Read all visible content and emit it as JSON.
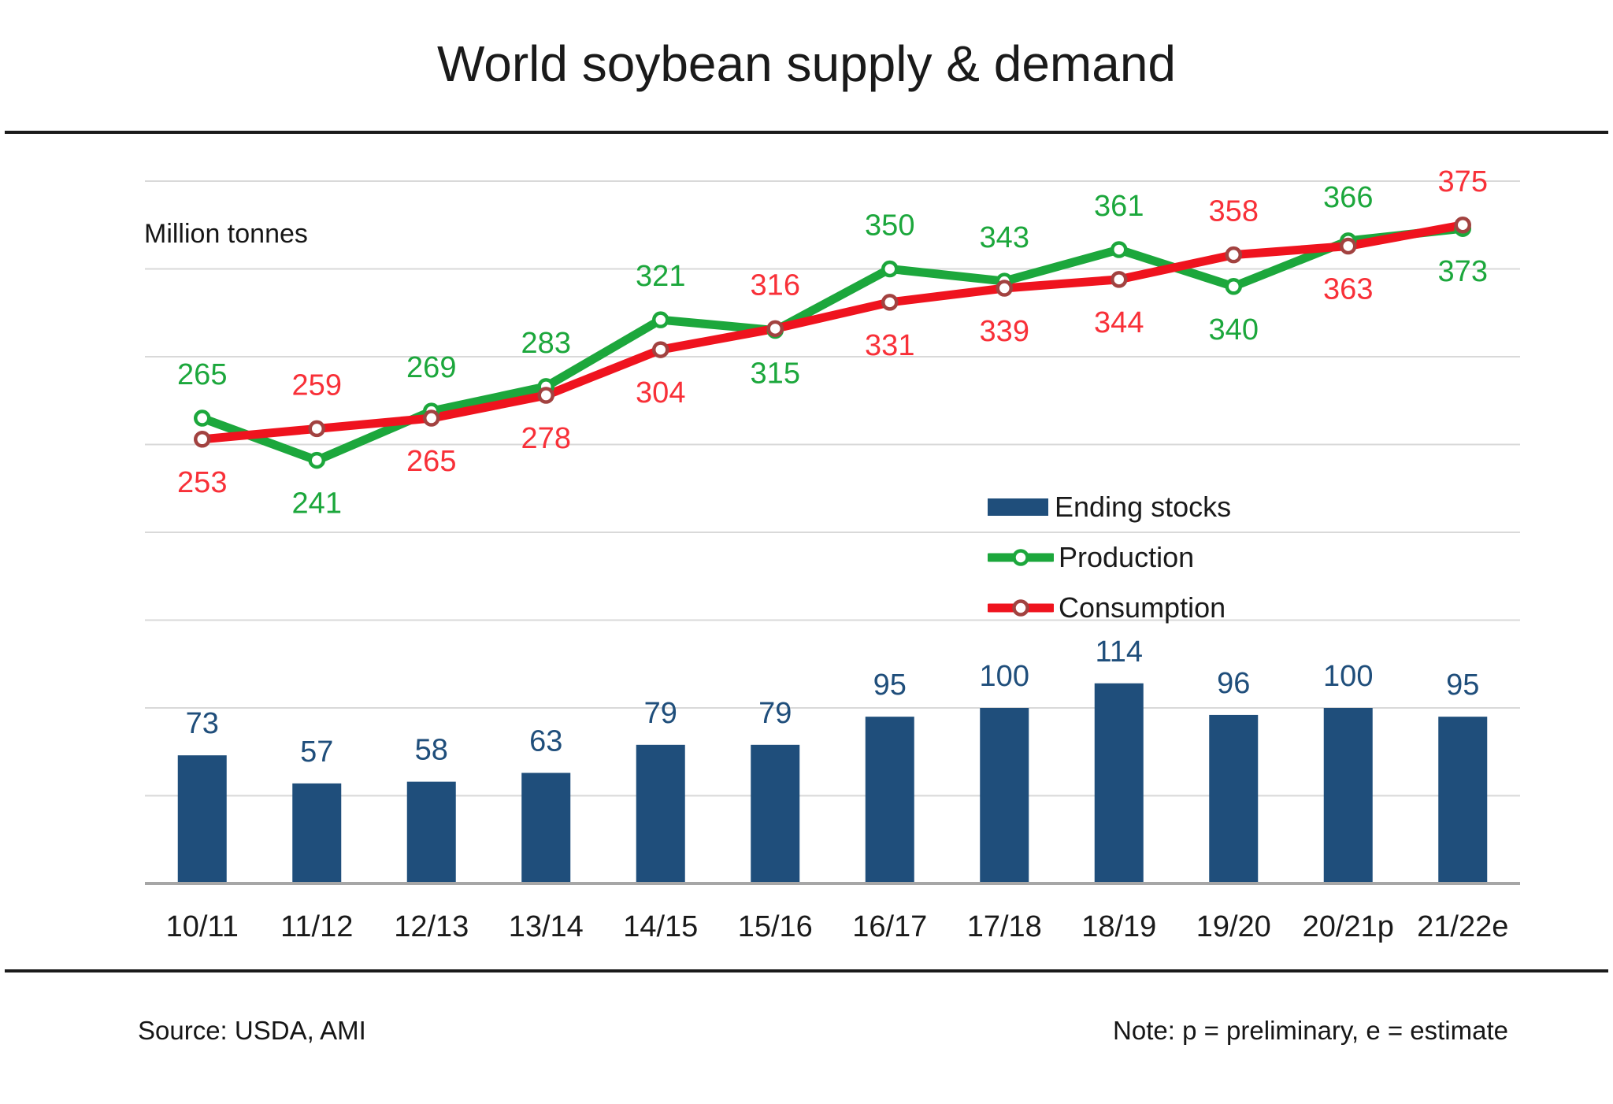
{
  "title": "World soybean supply & demand",
  "unit_label": "Million tonnes",
  "legend": {
    "items": [
      {
        "label": "Ending stocks",
        "type": "bar"
      },
      {
        "label": "Production",
        "type": "line"
      },
      {
        "label": "Consumption",
        "type": "line"
      }
    ]
  },
  "footer": {
    "source": "Source: USDA, AMI",
    "note": "Note: p = preliminary, e = estimate"
  },
  "colors": {
    "background": "#FFFFFF",
    "title_text": "#1A1A1A",
    "bar": "#1F4E7B",
    "bar_label": "#1F4E7B",
    "production_line": "#1CA73C",
    "production_label": "#1CA73C",
    "consumption_line": "#EF131E",
    "consumption_marker_ring": "#A24240",
    "consumption_label": "#F83038",
    "marker_fill": "#FFFFFF",
    "gridline": "#D9D9D9",
    "axis_line": "#A6A6A6",
    "category_label": "#1A1A1A",
    "rule": "#1B1B1B"
  },
  "chart_data": {
    "type": "combo",
    "title": "World soybean supply & demand",
    "ylabel": "Million tonnes",
    "categories": [
      "10/11",
      "11/12",
      "12/13",
      "13/14",
      "14/15",
      "15/16",
      "16/17",
      "17/18",
      "18/19",
      "19/20",
      "20/21p",
      "21/22e"
    ],
    "series": [
      {
        "name": "Ending stocks",
        "type": "bar",
        "values": [
          73,
          57,
          58,
          63,
          79,
          79,
          95,
          100,
          114,
          96,
          100,
          95
        ]
      },
      {
        "name": "Production",
        "type": "line",
        "values": [
          265,
          241,
          269,
          283,
          321,
          315,
          350,
          343,
          361,
          340,
          366,
          373
        ]
      },
      {
        "name": "Consumption",
        "type": "line",
        "values": [
          253,
          259,
          265,
          278,
          304,
          316,
          331,
          339,
          344,
          358,
          363,
          375
        ]
      }
    ],
    "ylim": [
      0,
      400
    ],
    "gridline_step": 50,
    "grid": true,
    "y_axis_tick_labels_visible": false,
    "data_labels": "every point and bar labeled",
    "legend_position": "center-right"
  }
}
